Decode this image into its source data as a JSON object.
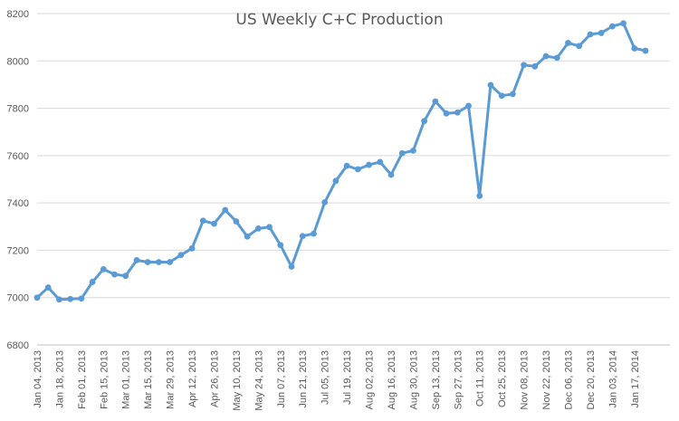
{
  "chart_data": {
    "type": "line",
    "title": "US Weekly C+C Production",
    "xlabel": "",
    "ylabel": "",
    "ylim": [
      6800,
      8200
    ],
    "yticks": [
      6800,
      7000,
      7200,
      7400,
      7600,
      7800,
      8000,
      8200
    ],
    "grid": true,
    "legend": "none",
    "series": [
      {
        "color": "#5b9bd5",
        "x": [
          "Jan 04, 2013",
          "Jan 11, 2013",
          "Jan 18, 2013",
          "Jan 25, 2013",
          "Feb 01, 2013",
          "Feb 08, 2013",
          "Feb 15, 2013",
          "Feb 22, 2013",
          "Mar 01, 2013",
          "Mar 08, 2013",
          "Mar 15, 2013",
          "Mar 22, 2013",
          "Mar 29, 2013",
          "Apr 05, 2013",
          "Apr 12, 2013",
          "Apr 19, 2013",
          "Apr 26, 2013",
          "May 03, 2013",
          "May 10, 2013",
          "May 17, 2013",
          "May 24, 2013",
          "May 31, 2013",
          "Jun 07, 2013",
          "Jun 14, 2013",
          "Jun 21, 2013",
          "Jun 28, 2013",
          "Jul 05, 2013",
          "Jul 12, 2013",
          "Jul 19, 2013",
          "Jul 26, 2013",
          "Aug 02, 2013",
          "Aug 09, 2013",
          "Aug 16, 2013",
          "Aug 23, 2013",
          "Aug 30, 2013",
          "Sep 06, 2013",
          "Sep 13, 2013",
          "Sep 20, 2013",
          "Sep 27, 2013",
          "Oct 04, 2013",
          "Oct 11, 2013",
          "Oct 18, 2013",
          "Oct 25, 2013",
          "Nov 01, 2013",
          "Nov 08, 2013",
          "Nov 15, 2013",
          "Nov 22, 2013",
          "Nov 29, 2013",
          "Dec 06, 2013",
          "Dec 13, 2013",
          "Dec 20, 2013",
          "Dec 27, 2013",
          "Jan 03, 2014",
          "Jan 10, 2014",
          "Jan 17, 2014",
          "Jan 24, 2014"
        ],
        "values": [
          7000,
          7043,
          6992,
          6994,
          6996,
          7066,
          7120,
          7098,
          7092,
          7158,
          7150,
          7150,
          7150,
          7180,
          7208,
          7325,
          7312,
          7370,
          7322,
          7258,
          7292,
          7298,
          7222,
          7131,
          7260,
          7270,
          7403,
          7493,
          7557,
          7542,
          7561,
          7573,
          7519,
          7610,
          7621,
          7746,
          7829,
          7778,
          7782,
          7810,
          7430,
          7898,
          7853,
          7860,
          7983,
          7977,
          8020,
          8013,
          8076,
          8063,
          8112,
          8118,
          8146,
          8159,
          8053,
          8043
        ]
      }
    ],
    "x_tick_labels": [
      "Jan 04, 2013",
      "Jan 18, 2013",
      "Feb 01, 2013",
      "Feb 15, 2013",
      "Mar 01, 2013",
      "Mar 15, 2013",
      "Mar 29, 2013",
      "Apr 12, 2013",
      "Apr 26, 2013",
      "May 10, 2013",
      "May 24, 2013",
      "Jun 07, 2013",
      "Jun 21, 2013",
      "Jul 05, 2013",
      "Jul 19, 2013",
      "Aug 02, 2013",
      "Aug 16, 2013",
      "Aug 30, 2013",
      "Sep 13, 2013",
      "Sep 27, 2013",
      "Oct 11, 2013",
      "Oct 25, 2013",
      "Nov 08, 2013",
      "Nov 22, 2013",
      "Dec 06, 2013",
      "Dec 20, 2013",
      "Jan 03, 2014",
      "Jan 17, 2014"
    ]
  }
}
